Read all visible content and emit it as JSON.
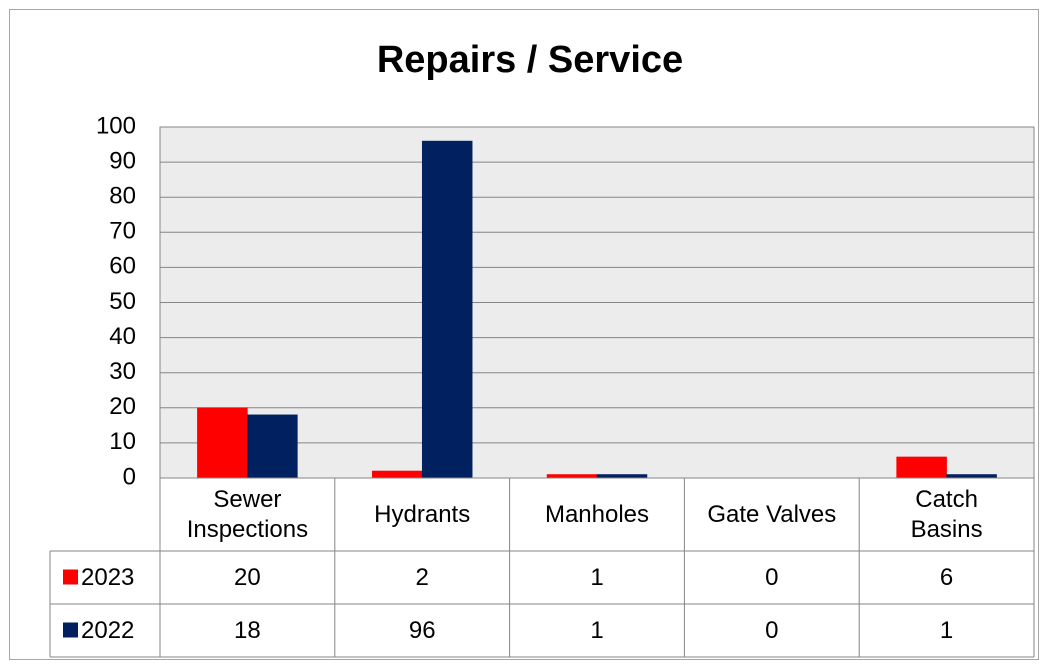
{
  "chart_data": {
    "type": "bar",
    "title": "Repairs / Service",
    "categories": [
      "Sewer Inspections",
      "Hydrants",
      "Manholes",
      "Gate Valves",
      "Catch Basins"
    ],
    "series": [
      {
        "name": "2023",
        "color": "#ff0000",
        "values": [
          20,
          2,
          1,
          0,
          6
        ]
      },
      {
        "name": "2022",
        "color": "#002060",
        "values": [
          18,
          96,
          1,
          0,
          1
        ]
      }
    ],
    "ylim": [
      0,
      100
    ],
    "yticks": [
      0,
      10,
      20,
      30,
      40,
      50,
      60,
      70,
      80,
      90,
      100
    ],
    "grid": true
  }
}
